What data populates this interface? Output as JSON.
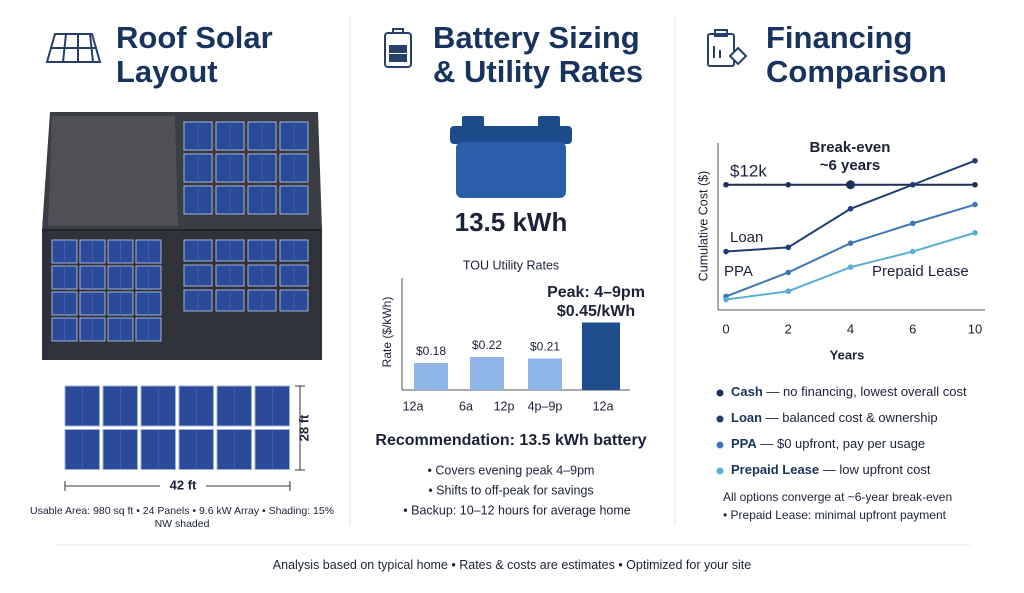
{
  "roof": {
    "title": [
      "Roof Solar",
      "Layout"
    ],
    "height_label": "28 ft",
    "width_label": "42 ft",
    "caption": [
      "Usable Area: 980 sq ft • 24 Panels • 9.6 kW Array • Shading: 15%",
      "NW shaded"
    ]
  },
  "battery": {
    "title": [
      "Battery Sizing",
      "& Utility Rates"
    ],
    "capacity": "13.5 kWh",
    "recommendation": "Recommendation: 13.5 kWh battery",
    "bullets": [
      "• Covers evening peak 4–9pm",
      "• Shifts to off-peak for savings",
      "• Backup: 10–12 hours for average home"
    ]
  },
  "financing": {
    "title": [
      "Financing",
      "Comparison"
    ],
    "descriptions": [
      " — no financing, lowest overall cost",
      " — balanced cost & ownership",
      " — $0 upfront, pay per usage",
      " — low upfront cost"
    ],
    "notes": [
      "All options converge at ~6-year break-even",
      "• Prepaid Lease: minimal upfront payment"
    ]
  },
  "chart_data": [
    {
      "type": "bar",
      "title": "TOU Utility Rates",
      "y_label": "Rate ($/kWh)",
      "categories": [
        null,
        null,
        null,
        null
      ],
      "xtick_labels": [
        "12a",
        "6a",
        "12p",
        "4p–9p",
        "12a"
      ],
      "values": [
        0.18,
        0.22,
        0.21,
        0.45
      ],
      "value_labels": [
        "$0.18",
        "$0.22",
        "$0.21",
        "$0.45/kWh"
      ],
      "colors": [
        "#8fb6e6",
        "#8fb6e6",
        "#8fb6e6",
        "#1f4e8f"
      ],
      "annotation": "Peak: 4–9pm",
      "ylim": [
        0,
        0.8
      ]
    },
    {
      "type": "line",
      "y_label": "Cumulative Cost ($)",
      "x_label": "Years",
      "categories": [
        "0",
        "2",
        "4",
        "6",
        "10"
      ],
      "series": [
        {
          "name": "Cash",
          "color": "#1a2f5a",
          "values": [
            12,
            12,
            12,
            12,
            12
          ]
        },
        {
          "name": "Loan",
          "color": "#1f3f73",
          "values": [
            5.6,
            6.0,
            9.7,
            12.0,
            14.3
          ]
        },
        {
          "name": "PPA",
          "color": "#3d78b5",
          "values": [
            1.3,
            3.6,
            6.4,
            8.3,
            10.1
          ]
        },
        {
          "name": "Prepaid Lease",
          "color": "#5aaed6",
          "values": [
            1.0,
            1.8,
            4.1,
            5.6,
            7.4
          ]
        }
      ],
      "series_labels": [
        "$12k",
        "Loan",
        "PPA",
        "Prepaid Lease"
      ],
      "annotation": [
        "Break-even",
        "~6 years"
      ],
      "ylim": [
        0,
        16
      ]
    }
  ],
  "footer": [
    "Analysis based on typical home",
    "Rates & costs are estimates",
    "Optimized for your site"
  ]
}
